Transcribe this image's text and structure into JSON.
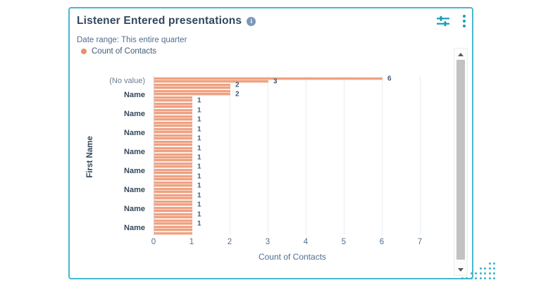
{
  "card": {
    "title": "Listener Entered presentations",
    "info_glyph": "i",
    "date_range": "Date range: This entire quarter",
    "legend": {
      "label": "Count of Contacts",
      "color": "#ea8f6e"
    },
    "accent_border_color": "#45b9cd",
    "action_icons": [
      "sliders-icon",
      "kebab-menu-icon"
    ]
  },
  "chart_data": {
    "type": "bar",
    "orientation": "horizontal",
    "title": "Listener Entered presentations",
    "xlabel": "Count of Contacts",
    "ylabel": "First Name",
    "xlim": [
      0,
      7.3
    ],
    "x_ticks": [
      "0",
      "1",
      "2",
      "3",
      "4",
      "5",
      "6",
      "7"
    ],
    "grid": "vertical",
    "bar_color": "#f0a183",
    "legend_position": "top-left",
    "y_tick_labels": [
      "(No value)",
      "Name",
      "Name",
      "Name",
      "Name",
      "Name",
      "Name",
      "Name",
      "Name"
    ],
    "values": [
      6,
      3,
      2,
      2,
      2,
      2,
      1,
      1,
      1,
      1,
      1,
      1,
      1,
      1,
      1,
      1,
      1,
      1,
      1,
      1,
      1,
      1,
      1,
      1,
      1,
      1,
      1,
      1,
      1,
      1,
      1,
      1,
      1,
      1,
      1,
      1,
      1,
      1,
      1,
      1,
      1,
      1,
      1,
      1,
      1,
      1,
      1,
      1,
      1,
      1
    ],
    "label_indices": [
      0,
      1,
      2,
      5,
      7,
      10,
      13,
      16,
      19,
      22,
      25,
      28,
      31,
      34,
      37,
      40,
      43,
      46
    ]
  }
}
